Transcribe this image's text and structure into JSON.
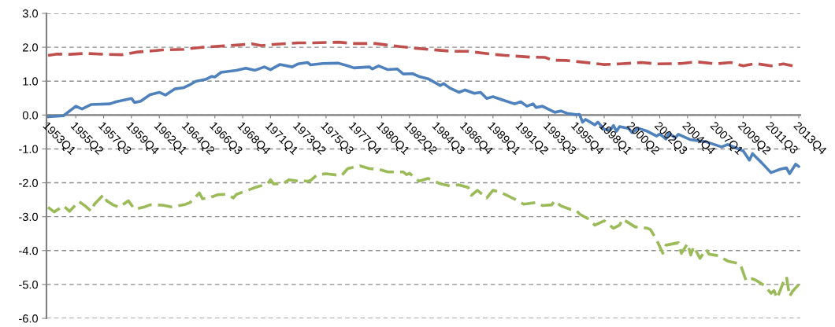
{
  "chart_data": {
    "type": "line",
    "grid": "y",
    "xlim": [
      "1952-11-15",
      "2013-11-15"
    ],
    "xticks": [
      {
        "value": "1953-01",
        "label": "1953Q1"
      },
      {
        "value": "1955-04",
        "label": "1955Q2"
      },
      {
        "value": "1957-07",
        "label": "1957Q3"
      },
      {
        "value": "1959-10",
        "label": "1959Q4"
      },
      {
        "value": "1962-01",
        "label": "1962Q1"
      },
      {
        "value": "1964-04",
        "label": "1964Q2"
      },
      {
        "value": "1966-07",
        "label": "1966Q3"
      },
      {
        "value": "1968-10",
        "label": "1968Q4"
      },
      {
        "value": "1971-01",
        "label": "1971Q1"
      },
      {
        "value": "1973-04",
        "label": "1973Q2"
      },
      {
        "value": "1975-07",
        "label": "1975Q3"
      },
      {
        "value": "1977-10",
        "label": "1977Q4"
      },
      {
        "value": "1980-01",
        "label": "1980Q1"
      },
      {
        "value": "1982-04",
        "label": "1982Q2"
      },
      {
        "value": "1984-07",
        "label": "1984Q3"
      },
      {
        "value": "1986-10",
        "label": "1986Q4"
      },
      {
        "value": "1989-01",
        "label": "1989Q1"
      },
      {
        "value": "1991-04",
        "label": "1991Q2"
      },
      {
        "value": "1993-07",
        "label": "1993Q3"
      },
      {
        "value": "1995-10",
        "label": "1995Q4"
      },
      {
        "value": "1998-01",
        "label": "1998Q1"
      },
      {
        "value": "2000-04",
        "label": "2000Q2"
      },
      {
        "value": "2002-07",
        "label": "2002Q3"
      },
      {
        "value": "2004-10",
        "label": "2004Q4"
      },
      {
        "value": "2007-01",
        "label": "2007Q1"
      },
      {
        "value": "2009-04",
        "label": "2009Q2"
      },
      {
        "value": "2011-07",
        "label": "2011Q3"
      },
      {
        "value": "2013-10",
        "label": "2013Q4"
      }
    ],
    "ylim": [
      -6,
      3
    ],
    "yticks": [
      {
        "value": 3,
        "label": "3.0"
      },
      {
        "value": 2,
        "label": "2.0"
      },
      {
        "value": 1,
        "label": "1.0"
      },
      {
        "value": 0,
        "label": "0.0"
      },
      {
        "value": -1,
        "label": "-1.0"
      },
      {
        "value": -2,
        "label": "-2.0"
      },
      {
        "value": -3,
        "label": "-3.0"
      },
      {
        "value": -4,
        "label": "-4.0"
      },
      {
        "value": -5,
        "label": "-5.0"
      },
      {
        "value": -6,
        "label": "-6.0"
      }
    ],
    "series": [
      {
        "color": "#c0504d",
        "line_style": "dashed",
        "x": [
          "1953-01",
          "1953-10",
          "1954-10",
          "1956-01",
          "1957-10",
          "1959-01",
          "1960-04",
          "1961-01",
          "1962-04",
          "1964-01",
          "1965-07",
          "1967-04",
          "1968-07",
          "1969-07",
          "1970-04",
          "1971-07",
          "1973-04",
          "1974-07",
          "1976-07",
          "1977-10",
          "1979-07",
          "1980-10",
          "1982-10",
          "1983-10",
          "1985-10",
          "1987-01",
          "1989-01",
          "1990-01",
          "1992-01",
          "1993-04",
          "1993-10",
          "1995-01",
          "1996-01",
          "1998-01",
          "1999-04",
          "2001-01",
          "2002-04",
          "2004-04",
          "2005-07",
          "2007-01",
          "2008-04",
          "2009-04",
          "2010-04",
          "2011-07",
          "2012-07",
          "2013-04"
        ],
        "values": [
          1.76,
          1.8,
          1.79,
          1.82,
          1.79,
          1.78,
          1.86,
          1.88,
          1.92,
          1.94,
          2.0,
          2.04,
          2.07,
          2.1,
          2.05,
          2.09,
          2.13,
          2.13,
          2.15,
          2.11,
          2.11,
          2.05,
          1.97,
          1.94,
          1.88,
          1.88,
          1.79,
          1.76,
          1.71,
          1.7,
          1.62,
          1.61,
          1.57,
          1.49,
          1.51,
          1.55,
          1.51,
          1.52,
          1.57,
          1.51,
          1.55,
          1.45,
          1.52,
          1.45,
          1.51,
          1.45
        ]
      },
      {
        "color": "#4f81bd",
        "line_style": "solid",
        "x": [
          "1953-01",
          "1954-04",
          "1955-04",
          "1955-10",
          "1956-07",
          "1958-01",
          "1958-07",
          "1959-10",
          "1960-01",
          "1960-07",
          "1961-04",
          "1962-01",
          "1962-07",
          "1963-04",
          "1964-01",
          "1964-07",
          "1965-01",
          "1965-10",
          "1966-04",
          "1966-07",
          "1967-01",
          "1968-04",
          "1969-01",
          "1969-10",
          "1970-07",
          "1971-01",
          "1971-10",
          "1972-10",
          "1973-04",
          "1974-01",
          "1974-04",
          "1975-04",
          "1976-07",
          "1977-04",
          "1977-10",
          "1979-01",
          "1979-04",
          "1979-10",
          "1980-07",
          "1981-04",
          "1981-10",
          "1982-07",
          "1983-01",
          "1983-10",
          "1984-10",
          "1985-01",
          "1985-07",
          "1986-04",
          "1986-10",
          "1987-07",
          "1988-01",
          "1988-07",
          "1989-01",
          "1989-10",
          "1990-10",
          "1991-04",
          "1991-10",
          "1992-04",
          "1992-07",
          "1993-01",
          "1994-01",
          "1994-07",
          "1995-01",
          "1995-10",
          "1996-01",
          "1996-04",
          "1996-07",
          "1997-04",
          "1997-07",
          "1998-01",
          "1998-07",
          "1998-10",
          "1999-01",
          "1999-04",
          "2000-01",
          "2000-04",
          "2000-10",
          "2001-07",
          "2002-04",
          "2002-07",
          "2003-01",
          "2003-04",
          "2003-10",
          "2004-01",
          "2005-01",
          "2006-04",
          "2007-07",
          "2008-01",
          "2009-04",
          "2009-10",
          "2010-01",
          "2010-10",
          "2011-07",
          "2012-04",
          "2012-10",
          "2013-01",
          "2013-07",
          "2013-10"
        ],
        "values": [
          -0.05,
          -0.02,
          0.26,
          0.18,
          0.31,
          0.33,
          0.39,
          0.49,
          0.37,
          0.41,
          0.6,
          0.67,
          0.59,
          0.77,
          0.81,
          0.9,
          1.0,
          1.05,
          1.14,
          1.12,
          1.26,
          1.32,
          1.38,
          1.32,
          1.42,
          1.34,
          1.49,
          1.42,
          1.51,
          1.55,
          1.48,
          1.52,
          1.53,
          1.45,
          1.39,
          1.42,
          1.36,
          1.45,
          1.34,
          1.36,
          1.21,
          1.22,
          1.14,
          1.07,
          0.87,
          0.93,
          0.8,
          0.67,
          0.74,
          0.64,
          0.67,
          0.49,
          0.54,
          0.45,
          0.33,
          0.39,
          0.26,
          0.33,
          0.22,
          0.26,
          0.08,
          0.12,
          0.05,
          0.01,
          0.02,
          -0.21,
          -0.13,
          -0.29,
          -0.21,
          -0.42,
          -0.44,
          -0.31,
          -0.48,
          -0.34,
          -0.4,
          -0.52,
          -0.39,
          -0.48,
          -0.62,
          -0.56,
          -0.71,
          -0.54,
          -0.67,
          -0.57,
          -0.73,
          -0.79,
          -0.94,
          -0.87,
          -1.06,
          -1.33,
          -1.14,
          -1.41,
          -1.7,
          -1.6,
          -1.56,
          -1.73,
          -1.45,
          -1.52
        ]
      },
      {
        "color": "#9bbb59",
        "line_style": "dashed",
        "x": [
          "1953-01",
          "1953-07",
          "1954-04",
          "1954-10",
          "1955-07",
          "1956-01",
          "1956-07",
          "1956-10",
          "1957-07",
          "1957-10",
          "1958-04",
          "1958-10",
          "1959-07",
          "1960-01",
          "1960-10",
          "1961-04",
          "1962-04",
          "1963-01",
          "1964-01",
          "1964-07",
          "1965-04",
          "1965-07",
          "1966-01",
          "1966-10",
          "1967-07",
          "1968-01",
          "1968-04",
          "1969-01",
          "1969-10",
          "1970-10",
          "1971-01",
          "1971-04",
          "1972-01",
          "1972-07",
          "1973-04",
          "1973-07",
          "1974-01",
          "1974-04",
          "1974-10",
          "1975-07",
          "1976-10",
          "1977-04",
          "1978-04",
          "1979-01",
          "1979-10",
          "1980-07",
          "1981-10",
          "1982-01",
          "1982-04",
          "1983-01",
          "1983-10",
          "1984-10",
          "1985-07",
          "1986-04",
          "1987-01",
          "1987-04",
          "1987-10",
          "1988-07",
          "1989-01",
          "1989-10",
          "1990-10",
          "1991-07",
          "1992-07",
          "1993-01",
          "1993-10",
          "1994-01",
          "1994-07",
          "1995-04",
          "1995-10",
          "1996-01",
          "1996-10",
          "1997-04",
          "1998-01",
          "1998-10",
          "1999-04",
          "1999-07",
          "2000-07",
          "2001-07",
          "2001-10",
          "2002-04",
          "2002-10",
          "2003-01",
          "2004-01",
          "2004-04",
          "2004-10",
          "2005-01",
          "2005-04",
          "2005-10",
          "2006-04",
          "2006-07",
          "2007-04",
          "2008-01",
          "2009-01",
          "2009-07",
          "2010-01",
          "2010-04",
          "2011-01",
          "2011-07",
          "2011-10",
          "2012-01",
          "2012-07",
          "2012-10",
          "2013-01",
          "2013-04",
          "2013-10"
        ],
        "values": [
          -2.72,
          -2.86,
          -2.68,
          -2.84,
          -2.55,
          -2.68,
          -2.84,
          -2.63,
          -2.35,
          -2.53,
          -2.65,
          -2.72,
          -2.53,
          -2.78,
          -2.72,
          -2.65,
          -2.66,
          -2.71,
          -2.65,
          -2.58,
          -2.3,
          -2.47,
          -2.45,
          -2.35,
          -2.34,
          -2.45,
          -2.34,
          -2.24,
          -2.14,
          -2.03,
          -1.91,
          -2.03,
          -2.03,
          -1.91,
          -1.95,
          -1.93,
          -1.96,
          -1.93,
          -1.77,
          -1.73,
          -1.79,
          -1.58,
          -1.5,
          -1.58,
          -1.6,
          -1.68,
          -1.68,
          -1.76,
          -1.72,
          -1.95,
          -1.87,
          -2.03,
          -2.09,
          -2.06,
          -2.14,
          -2.37,
          -2.22,
          -2.45,
          -2.22,
          -2.3,
          -2.48,
          -2.63,
          -2.58,
          -2.67,
          -2.65,
          -2.53,
          -2.68,
          -2.78,
          -2.81,
          -2.92,
          -3.07,
          -3.25,
          -3.12,
          -3.34,
          -3.25,
          -3.07,
          -3.3,
          -3.34,
          -3.38,
          -3.69,
          -4.08,
          -3.84,
          -3.77,
          -4.08,
          -3.79,
          -4.13,
          -3.88,
          -4.23,
          -3.96,
          -4.11,
          -4.15,
          -4.31,
          -4.39,
          -4.9,
          -4.83,
          -4.87,
          -5.04,
          -5.26,
          -5.18,
          -5.41,
          -4.93,
          -4.77,
          -5.35,
          -5.2,
          -5.0
        ]
      }
    ]
  }
}
